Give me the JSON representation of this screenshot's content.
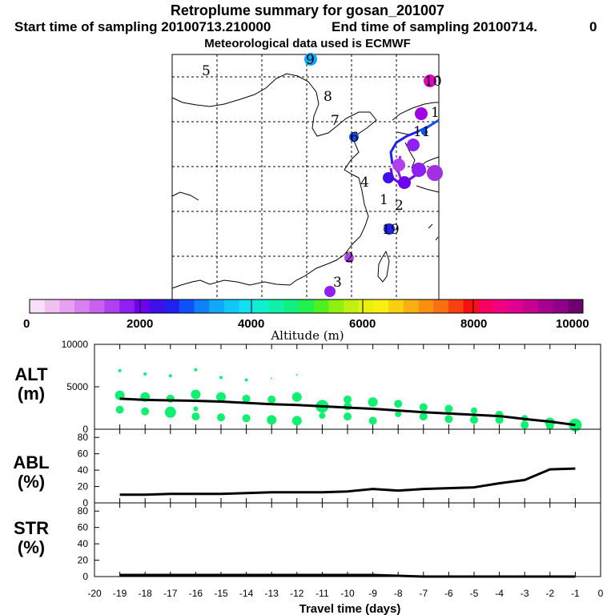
{
  "header": {
    "title": "Retroplume summary for gosan_201007",
    "start_label": "Start time of sampling 20100713.210000",
    "end_label": "End time of sampling 20100714.",
    "end_extra": "0",
    "met_label": "Meteorological data used is ECMWF"
  },
  "colorbar": {
    "ticks": [
      "0",
      "2000",
      "4000",
      "6000",
      "8000",
      "10000"
    ],
    "label": "Altitude (m)",
    "colors": [
      "#f8e0f8",
      "#f0c0f0",
      "#e8a0f0",
      "#d880f0",
      "#c860f0",
      "#b040f0",
      "#9020f0",
      "#7000f0",
      "#4010e8",
      "#2020f0",
      "#1050f8",
      "#1080f8",
      "#10a8f8",
      "#10c8f8",
      "#10e0f0",
      "#10f0d0",
      "#10f0a8",
      "#10f080",
      "#20f050",
      "#50f020",
      "#90f010",
      "#c0f010",
      "#e8f010",
      "#f8f010",
      "#f8d010",
      "#f8b010",
      "#f89010",
      "#f87010",
      "#f84010",
      "#f81010",
      "#f80060",
      "#f00080",
      "#e00090",
      "#c80090",
      "#a80090",
      "#900088",
      "#700070"
    ]
  },
  "map": {
    "labels": [
      {
        "text": "5",
        "color": "#000000"
      },
      {
        "text": "9",
        "color": "#10a8f8"
      },
      {
        "text": "10",
        "color": "#e000c0"
      },
      {
        "text": "8",
        "color": "#1080f8"
      },
      {
        "text": "7",
        "color": "#1050f8"
      },
      {
        "text": "6",
        "color": "#2020f0"
      },
      {
        "text": "4",
        "color": "#000000"
      },
      {
        "text": "1",
        "color": "#7000f0"
      },
      {
        "text": "2",
        "color": "#000000"
      },
      {
        "text": "19",
        "color": "#2020f0"
      },
      {
        "text": "2",
        "color": "#9020f0"
      },
      {
        "text": "3",
        "color": "#9020f0"
      },
      {
        "text": "11",
        "color": "#000000"
      },
      {
        "text": "1",
        "color": "#000000"
      }
    ]
  },
  "panels": {
    "alt": {
      "label1": "ALT",
      "label2": "(m)"
    },
    "abl": {
      "label1": "ABL",
      "label2": "(%)"
    },
    "str": {
      "label1": "STR",
      "label2": "(%)"
    }
  },
  "chart_data": {
    "type": "line",
    "xlabel": "Travel time (days)",
    "x_ticks": [
      "-20",
      "-19",
      "-18",
      "-17",
      "-16",
      "-15",
      "-14",
      "-13",
      "-12",
      "-11",
      "-10",
      "-9",
      "-8",
      "-7",
      "-6",
      "-5",
      "-4",
      "-3",
      "-2",
      "-1",
      "0"
    ],
    "xlim": [
      -20,
      0
    ],
    "series": [
      {
        "name": "ALT",
        "ylim": [
          0,
          10000
        ],
        "y_ticks": [
          "0",
          "5000",
          "10000"
        ],
        "x": [
          -19,
          -18,
          -17,
          -16,
          -15,
          -14,
          -13,
          -12,
          -11,
          -10,
          -9,
          -8,
          -7,
          -6,
          -5,
          -4,
          -3,
          -2,
          -1
        ],
        "values": [
          3600,
          3450,
          3400,
          3350,
          3250,
          3100,
          2950,
          2850,
          2700,
          2550,
          2400,
          2200,
          2000,
          1850,
          1700,
          1550,
          1200,
          900,
          500
        ],
        "scatter": [
          {
            "x": -19,
            "y": 6900,
            "s": 2
          },
          {
            "x": -19,
            "y": 4000,
            "s": 6
          },
          {
            "x": -19,
            "y": 2300,
            "s": 5
          },
          {
            "x": -18,
            "y": 6500,
            "s": 2
          },
          {
            "x": -18,
            "y": 3800,
            "s": 6
          },
          {
            "x": -18,
            "y": 2100,
            "s": 5
          },
          {
            "x": -17,
            "y": 6300,
            "s": 2
          },
          {
            "x": -17,
            "y": 3600,
            "s": 5
          },
          {
            "x": -17,
            "y": 2000,
            "s": 7
          },
          {
            "x": -16,
            "y": 7000,
            "s": 2
          },
          {
            "x": -16,
            "y": 4100,
            "s": 6
          },
          {
            "x": -16,
            "y": 2400,
            "s": 3
          },
          {
            "x": -16,
            "y": 1500,
            "s": 5
          },
          {
            "x": -15,
            "y": 6100,
            "s": 2
          },
          {
            "x": -15,
            "y": 3800,
            "s": 6
          },
          {
            "x": -15,
            "y": 1400,
            "s": 5
          },
          {
            "x": -14,
            "y": 5800,
            "s": 2
          },
          {
            "x": -14,
            "y": 3600,
            "s": 5
          },
          {
            "x": -14,
            "y": 1300,
            "s": 5
          },
          {
            "x": -13,
            "y": 6000,
            "s": 1
          },
          {
            "x": -13,
            "y": 3500,
            "s": 5
          },
          {
            "x": -13,
            "y": 1100,
            "s": 6
          },
          {
            "x": -12,
            "y": 6400,
            "s": 1
          },
          {
            "x": -12,
            "y": 3800,
            "s": 6
          },
          {
            "x": -12,
            "y": 1000,
            "s": 6
          },
          {
            "x": -11,
            "y": 2700,
            "s": 8
          },
          {
            "x": -11,
            "y": 1600,
            "s": 4
          },
          {
            "x": -10,
            "y": 3500,
            "s": 5
          },
          {
            "x": -10,
            "y": 2700,
            "s": 5
          },
          {
            "x": -10,
            "y": 1500,
            "s": 5
          },
          {
            "x": -9,
            "y": 3200,
            "s": 6
          },
          {
            "x": -9,
            "y": 1000,
            "s": 5
          },
          {
            "x": -8,
            "y": 3000,
            "s": 5
          },
          {
            "x": -8,
            "y": 1800,
            "s": 4
          },
          {
            "x": -7,
            "y": 2600,
            "s": 5
          },
          {
            "x": -7,
            "y": 1500,
            "s": 5
          },
          {
            "x": -6,
            "y": 2400,
            "s": 5
          },
          {
            "x": -6,
            "y": 1200,
            "s": 5
          },
          {
            "x": -5,
            "y": 2200,
            "s": 4
          },
          {
            "x": -5,
            "y": 1100,
            "s": 5
          },
          {
            "x": -4,
            "y": 1700,
            "s": 5
          },
          {
            "x": -4,
            "y": 1100,
            "s": 5
          },
          {
            "x": -3,
            "y": 1300,
            "s": 4
          },
          {
            "x": -3,
            "y": 500,
            "s": 5
          },
          {
            "x": -2,
            "y": 800,
            "s": 6
          },
          {
            "x": -2,
            "y": 400,
            "s": 5
          },
          {
            "x": -1,
            "y": 500,
            "s": 8
          }
        ]
      },
      {
        "name": "ABL",
        "ylim": [
          0,
          90
        ],
        "y_ticks": [
          "0",
          "20",
          "40",
          "60",
          "80"
        ],
        "x": [
          -19,
          -18,
          -17,
          -16,
          -15,
          -14,
          -13,
          -12,
          -11,
          -10,
          -9,
          -8,
          -7,
          -6,
          -5,
          -4,
          -3,
          -2,
          -1
        ],
        "values": [
          10,
          10,
          11,
          11,
          11,
          12,
          13,
          13,
          13,
          14,
          17,
          15,
          17,
          18,
          19,
          24,
          28,
          41,
          42
        ]
      },
      {
        "name": "STR",
        "ylim": [
          0,
          90
        ],
        "y_ticks": [
          "0",
          "20",
          "40",
          "60",
          "80"
        ],
        "x": [
          -19,
          -18,
          -17,
          -16,
          -15,
          -14,
          -13,
          -12,
          -11,
          -10,
          -9,
          -8,
          -7,
          -6,
          -5,
          -4,
          -3,
          -2,
          -1
        ],
        "values": [
          2,
          2,
          2,
          2,
          2,
          2,
          2,
          2,
          2,
          2,
          2,
          1,
          0,
          0,
          0,
          0,
          0,
          0,
          0
        ]
      }
    ]
  }
}
